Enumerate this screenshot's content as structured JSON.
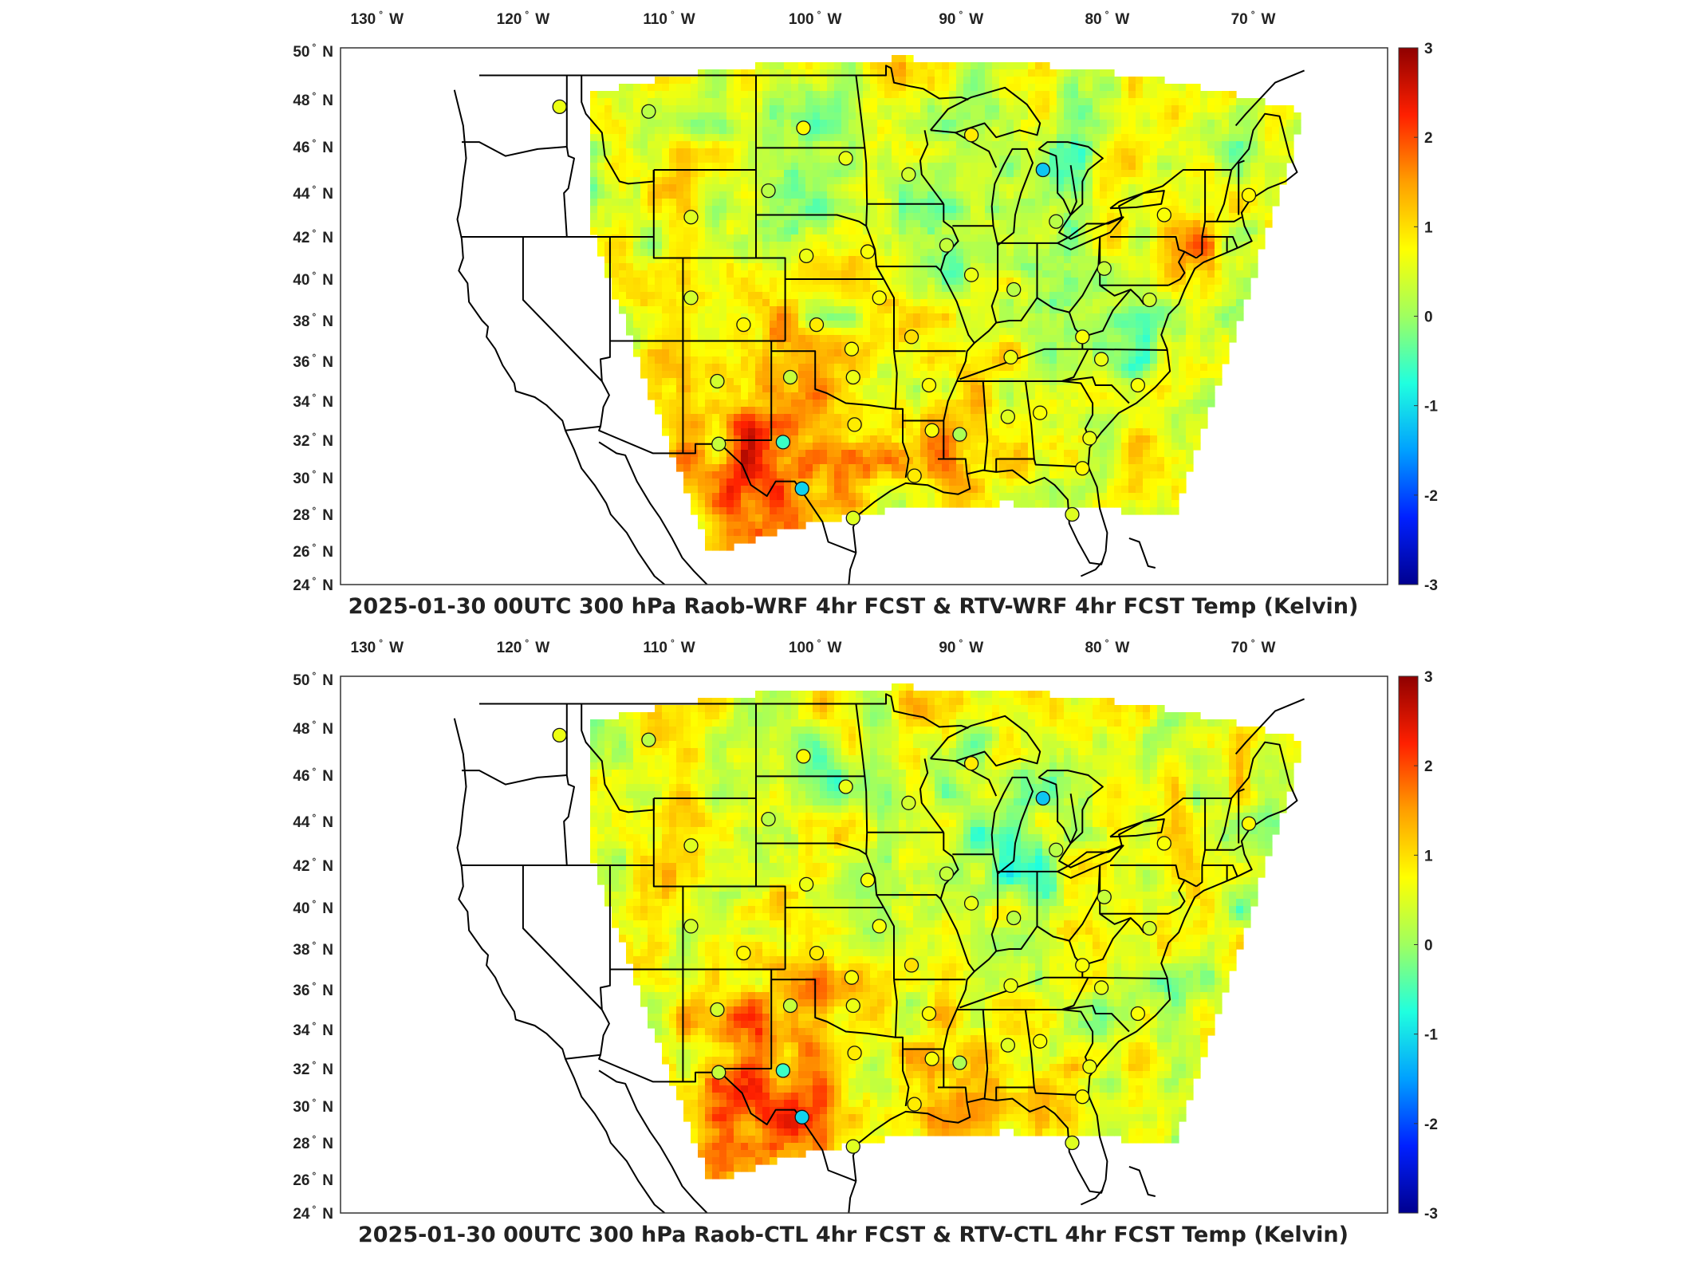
{
  "panels": [
    {
      "title": "2025-01-30 00UTC 300 hPa Raob-WRF 4hr FCST & RTV-WRF 4hr FCST Temp (Kelvin)",
      "seed": 7
    },
    {
      "title": "2025-01-30 00UTC 300 hPa Raob-CTL 4hr FCST & RTV-CTL 4hr FCST Temp (Kelvin)",
      "seed": 19
    }
  ],
  "lon_ticks": [
    {
      "value": -130,
      "num": "130",
      "hemi": "W"
    },
    {
      "value": -120,
      "num": "120",
      "hemi": "W"
    },
    {
      "value": -110,
      "num": "110",
      "hemi": "W"
    },
    {
      "value": -100,
      "num": "100",
      "hemi": "W"
    },
    {
      "value": -90,
      "num": "90",
      "hemi": "W"
    },
    {
      "value": -80,
      "num": "80",
      "hemi": "W"
    },
    {
      "value": -70,
      "num": "70",
      "hemi": "W"
    }
  ],
  "lat_ticks": [
    {
      "value": 50,
      "num": "50",
      "hemi": "N"
    },
    {
      "value": 48,
      "num": "48",
      "hemi": "N"
    },
    {
      "value": 46,
      "num": "46",
      "hemi": "N"
    },
    {
      "value": 44,
      "num": "44",
      "hemi": "N"
    },
    {
      "value": 42,
      "num": "42",
      "hemi": "N"
    },
    {
      "value": 40,
      "num": "40",
      "hemi": "N"
    },
    {
      "value": 38,
      "num": "38",
      "hemi": "N"
    },
    {
      "value": 36,
      "num": "36",
      "hemi": "N"
    },
    {
      "value": 34,
      "num": "34",
      "hemi": "N"
    },
    {
      "value": 32,
      "num": "32",
      "hemi": "N"
    },
    {
      "value": 30,
      "num": "30",
      "hemi": "N"
    },
    {
      "value": 28,
      "num": "28",
      "hemi": "N"
    },
    {
      "value": 26,
      "num": "26",
      "hemi": "N"
    },
    {
      "value": 24,
      "num": "24",
      "hemi": "N"
    }
  ],
  "colorbar": {
    "min": -3,
    "max": 3,
    "tick_labels": [
      "3",
      "2",
      "1",
      "0",
      "-1",
      "-2",
      "-3"
    ],
    "colormap": [
      "#00008f",
      "#0020ff",
      "#00a0ff",
      "#20ffdf",
      "#9fff60",
      "#ffff00",
      "#ff9f00",
      "#ff2000",
      "#8f0000"
    ]
  },
  "stations": [
    {
      "lon": -117.5,
      "lat": 47.7,
      "v": 0.6
    },
    {
      "lon": -111.4,
      "lat": 47.5,
      "v": 0.2
    },
    {
      "lon": -100.8,
      "lat": 46.8,
      "v": 0.8
    },
    {
      "lon": -97.9,
      "lat": 45.5,
      "v": 0.6
    },
    {
      "lon": -93.6,
      "lat": 44.8,
      "v": 0.4
    },
    {
      "lon": -89.3,
      "lat": 46.5,
      "v": 0.9
    },
    {
      "lon": -84.4,
      "lat": 45.0,
      "v": -1.2
    },
    {
      "lon": -83.5,
      "lat": 42.7,
      "v": 0.2
    },
    {
      "lon": -76.1,
      "lat": 43.0,
      "v": 0.7
    },
    {
      "lon": -70.3,
      "lat": 43.9,
      "v": 0.8
    },
    {
      "lon": -108.5,
      "lat": 42.9,
      "v": 0.5
    },
    {
      "lon": -103.2,
      "lat": 44.1,
      "v": 0.2
    },
    {
      "lon": -100.6,
      "lat": 41.1,
      "v": 0.6
    },
    {
      "lon": -96.4,
      "lat": 41.3,
      "v": 0.7
    },
    {
      "lon": -91.0,
      "lat": 41.6,
      "v": 0.3
    },
    {
      "lon": -89.3,
      "lat": 40.2,
      "v": 0.6
    },
    {
      "lon": -86.4,
      "lat": 39.5,
      "v": 0.2
    },
    {
      "lon": -80.2,
      "lat": 40.5,
      "v": 0.3
    },
    {
      "lon": -108.5,
      "lat": 39.1,
      "v": 0.4
    },
    {
      "lon": -104.9,
      "lat": 37.8,
      "v": 0.8
    },
    {
      "lon": -95.6,
      "lat": 39.1,
      "v": 0.7
    },
    {
      "lon": -99.9,
      "lat": 37.8,
      "v": 0.9
    },
    {
      "lon": -93.4,
      "lat": 37.2,
      "v": 1.0
    },
    {
      "lon": -86.6,
      "lat": 36.2,
      "v": 0.6
    },
    {
      "lon": -81.7,
      "lat": 37.2,
      "v": 0.7
    },
    {
      "lon": -77.1,
      "lat": 39.0,
      "v": 0.4
    },
    {
      "lon": -80.4,
      "lat": 36.1,
      "v": 0.6
    },
    {
      "lon": -106.7,
      "lat": 35.0,
      "v": 0.4
    },
    {
      "lon": -101.7,
      "lat": 35.2,
      "v": 0.3
    },
    {
      "lon": -97.4,
      "lat": 35.2,
      "v": 0.6
    },
    {
      "lon": -97.5,
      "lat": 36.6,
      "v": 0.7
    },
    {
      "lon": -92.2,
      "lat": 34.8,
      "v": 0.8
    },
    {
      "lon": -84.6,
      "lat": 33.4,
      "v": 0.7
    },
    {
      "lon": -86.8,
      "lat": 33.2,
      "v": 0.5
    },
    {
      "lon": -90.1,
      "lat": 32.3,
      "v": 0.1
    },
    {
      "lon": -97.3,
      "lat": 32.8,
      "v": 0.9
    },
    {
      "lon": -106.6,
      "lat": 31.8,
      "v": 0.3
    },
    {
      "lon": -102.2,
      "lat": 31.9,
      "v": -0.6
    },
    {
      "lon": -100.9,
      "lat": 29.4,
      "v": -1.1
    },
    {
      "lon": -97.4,
      "lat": 27.8,
      "v": 0.5
    },
    {
      "lon": -93.2,
      "lat": 30.1,
      "v": 0.9
    },
    {
      "lon": -92.0,
      "lat": 32.5,
      "v": 0.7
    },
    {
      "lon": -81.2,
      "lat": 32.1,
      "v": 0.6
    },
    {
      "lon": -77.9,
      "lat": 34.8,
      "v": 0.7
    },
    {
      "lon": -81.7,
      "lat": 30.5,
      "v": 0.8
    },
    {
      "lon": -82.4,
      "lat": 28.0,
      "v": 0.5
    }
  ]
}
